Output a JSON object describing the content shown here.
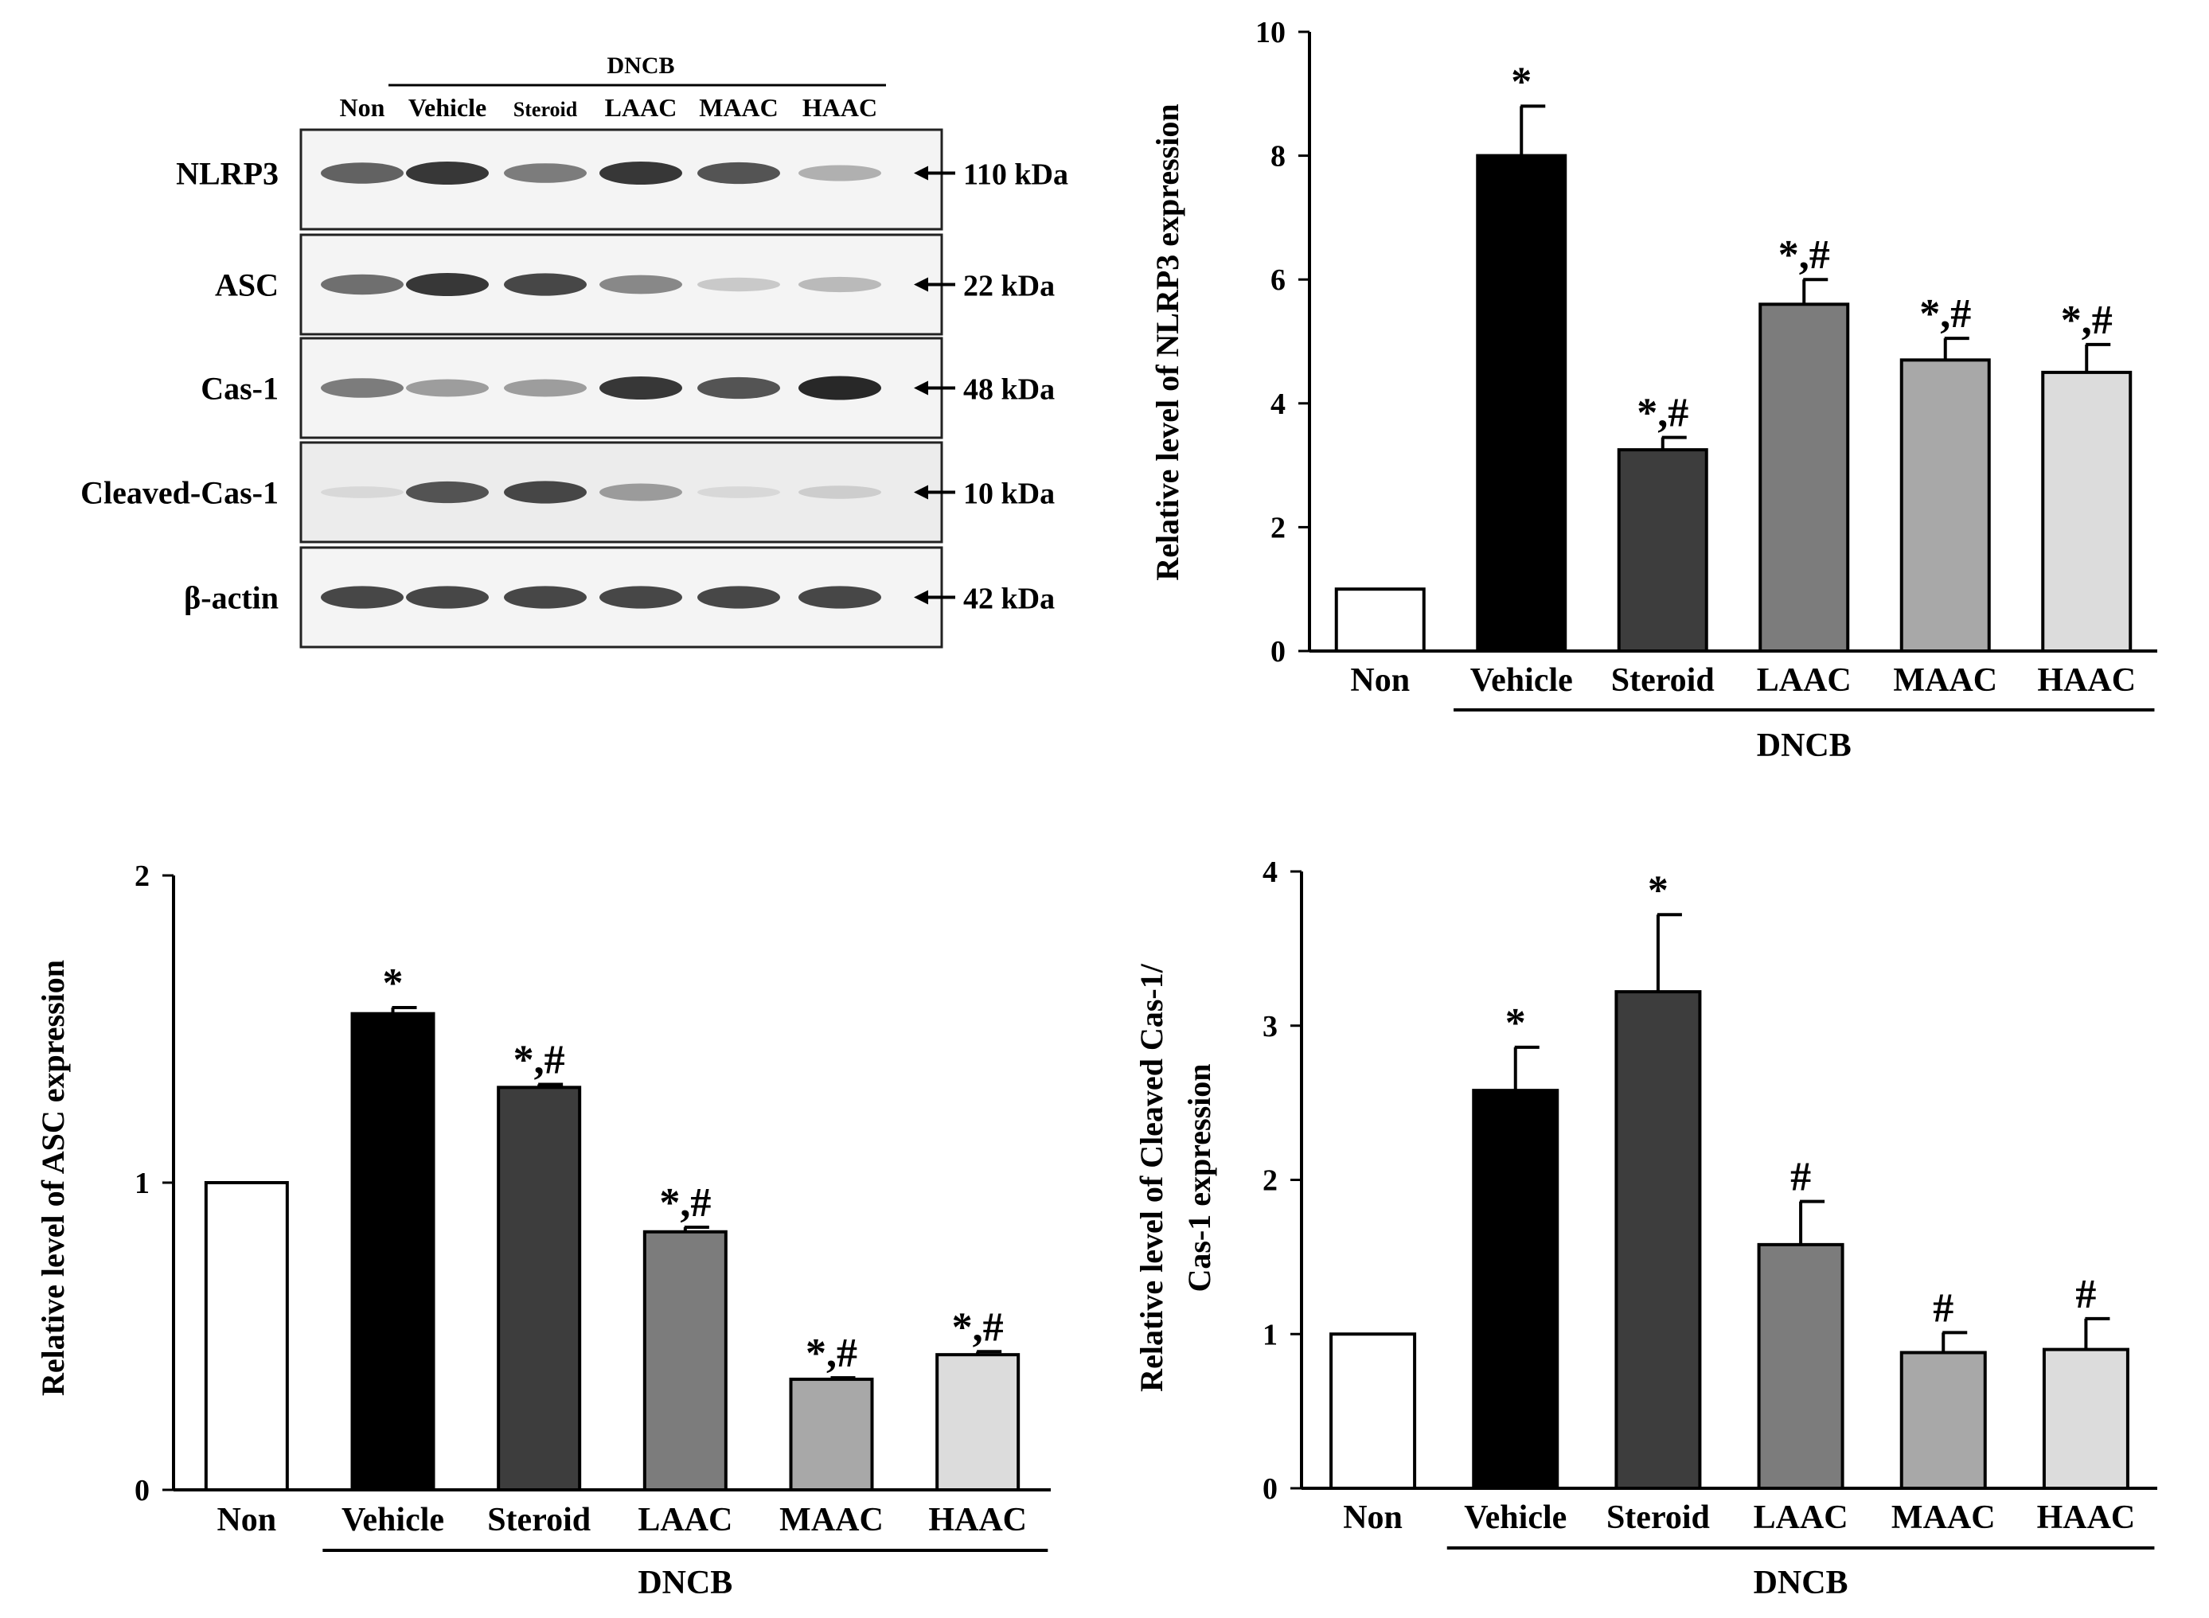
{
  "blot": {
    "group_label": "DNCB",
    "lanes": [
      "Non",
      "Vehicle",
      "Steroid",
      "LAAC",
      "MAAC",
      "HAAC"
    ],
    "rows": [
      {
        "protein": "NLRP3",
        "size": "110 kDa",
        "intensity": [
          0.8,
          0.95,
          0.7,
          0.95,
          0.85,
          0.45
        ]
      },
      {
        "protein": "ASC",
        "size": "22 kDa",
        "intensity": [
          0.75,
          0.95,
          0.9,
          0.65,
          0.3,
          0.4
        ]
      },
      {
        "protein": "Cas-1",
        "size": "48 kDa",
        "intensity": [
          0.7,
          0.55,
          0.55,
          0.95,
          0.85,
          1.0
        ]
      },
      {
        "protein": "Cleaved-Cas-1",
        "size": "10 kDa",
        "intensity": [
          0.15,
          0.85,
          0.9,
          0.55,
          0.15,
          0.25
        ]
      },
      {
        "protein": "β-actin",
        "size": "42 kDa",
        "intensity": [
          0.9,
          0.9,
          0.9,
          0.9,
          0.9,
          0.9
        ]
      }
    ]
  },
  "chart_data": [
    {
      "type": "bar",
      "title": "",
      "xlabel": "",
      "ylabel": "Relative level of NLRP3 expression",
      "group_label": "DNCB",
      "categories": [
        "Non",
        "Vehicle",
        "Steroid",
        "LAAC",
        "MAAC",
        "HAAC"
      ],
      "values": [
        1.0,
        8.0,
        3.25,
        5.6,
        4.7,
        4.5
      ],
      "errors": [
        0,
        0.8,
        0.2,
        0.4,
        0.35,
        0.45
      ],
      "annotations": [
        "",
        "*",
        "*,#",
        "*,#",
        "*,#",
        "*,#"
      ],
      "ylim": [
        0,
        10
      ],
      "yticks": [
        0,
        2,
        4,
        6,
        8,
        10
      ],
      "colors": [
        "#ffffff",
        "#000000",
        "#3d3d3d",
        "#7c7c7c",
        "#a8a8a8",
        "#dcdcdc"
      ]
    },
    {
      "type": "bar",
      "title": "",
      "xlabel": "",
      "ylabel": "Relative level of ASC expression",
      "group_label": "DNCB",
      "categories": [
        "Non",
        "Vehicle",
        "Steroid",
        "LAAC",
        "MAAC",
        "HAAC"
      ],
      "values": [
        1.0,
        1.55,
        1.31,
        0.84,
        0.36,
        0.44
      ],
      "errors": [
        0,
        0.02,
        0.01,
        0.015,
        0.005,
        0.01
      ],
      "annotations": [
        "",
        "*",
        "*,#",
        "*,#",
        "*,#",
        "*,#"
      ],
      "ylim": [
        0,
        2
      ],
      "yticks": [
        0,
        1,
        2
      ],
      "colors": [
        "#ffffff",
        "#000000",
        "#3d3d3d",
        "#7c7c7c",
        "#a8a8a8",
        "#dcdcdc"
      ]
    },
    {
      "type": "bar",
      "title": "",
      "xlabel": "",
      "ylabel": "Relative level of Cleaved Cas-1/",
      "ylabel2": "Cas-1 expression",
      "group_label": "DNCB",
      "categories": [
        "Non",
        "Vehicle",
        "Steroid",
        "LAAC",
        "MAAC",
        "HAAC"
      ],
      "values": [
        1.0,
        2.58,
        3.22,
        1.58,
        0.88,
        0.9
      ],
      "errors": [
        0,
        0.28,
        0.5,
        0.28,
        0.13,
        0.2
      ],
      "annotations": [
        "",
        "*",
        "*",
        "#",
        "#",
        "#"
      ],
      "ylim": [
        0,
        4
      ],
      "yticks": [
        0,
        1,
        2,
        3,
        4
      ],
      "colors": [
        "#ffffff",
        "#000000",
        "#3d3d3d",
        "#7c7c7c",
        "#a8a8a8",
        "#dcdcdc"
      ]
    }
  ]
}
